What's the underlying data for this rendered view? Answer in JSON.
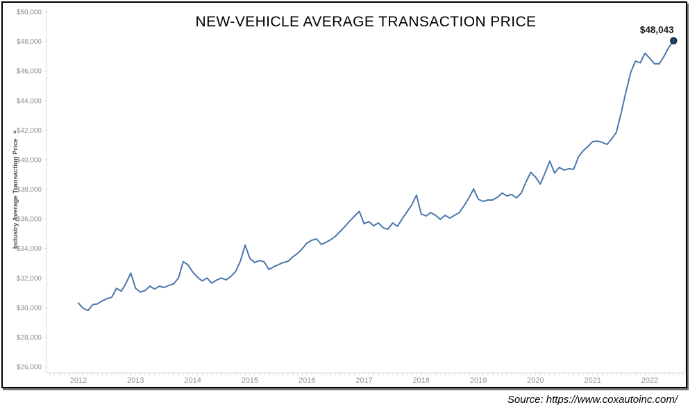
{
  "title": "NEW-VEHICLE AVERAGE TRANSACTION PRICE",
  "source_caption": "Source: https://www.coxautoinc.com/",
  "colors": {
    "line": "#4a77ad",
    "marker_fill": "#23456d",
    "marker_stroke": "#101f33",
    "axis_line": "#d9d9d9",
    "tick_label": "#8e8e8e",
    "y_axis_title": "#4d4d4d",
    "title_text": "#000000",
    "annotation_text": "#1a1a1a"
  },
  "icons": {
    "sort_icon": "✈"
  },
  "y_axis": {
    "title": "Industry Average Transaction Price",
    "tick_labels": [
      "$50,000",
      "$48,000",
      "$46,000",
      "$44,000",
      "$42,000",
      "$40,000",
      "$38,000",
      "$36,000",
      "$34,000",
      "$32,000",
      "$30,000",
      "$28,000",
      "$26,000"
    ]
  },
  "x_axis": {
    "tick_labels": [
      "2012",
      "2013",
      "2014",
      "2015",
      "2016",
      "2017",
      "2018",
      "2019",
      "2020",
      "2021",
      "2022"
    ]
  },
  "chart_data": {
    "type": "line",
    "title": "NEW-VEHICLE AVERAGE TRANSACTION PRICE",
    "ylabel": "Industry Average Transaction Price",
    "xlabel": "",
    "ylim": [
      26000,
      50000
    ],
    "y_tick_step": 2000,
    "grid": false,
    "legend": false,
    "frequency": "monthly",
    "x_start": "2012-01",
    "x_end": "2022-06",
    "xticks": [
      2012,
      2013,
      2014,
      2015,
      2016,
      2017,
      2018,
      2019,
      2020,
      2021,
      2022
    ],
    "end_label": {
      "text": "$48,043",
      "value": 48043
    },
    "series": [
      {
        "name": "Industry Average Transaction Price",
        "values": [
          30300,
          29950,
          29800,
          30200,
          30250,
          30450,
          30600,
          30700,
          31300,
          31100,
          31650,
          32330,
          31300,
          31050,
          31150,
          31450,
          31250,
          31450,
          31350,
          31500,
          31600,
          32000,
          33100,
          32900,
          32400,
          32050,
          31800,
          32000,
          31650,
          31850,
          32000,
          31870,
          32100,
          32430,
          33130,
          34220,
          33330,
          33040,
          33180,
          33090,
          32570,
          32760,
          32900,
          33040,
          33130,
          33420,
          33650,
          33980,
          34360,
          34550,
          34640,
          34270,
          34410,
          34590,
          34830,
          35160,
          35490,
          35860,
          36190,
          36500,
          35670,
          35810,
          35530,
          35720,
          35390,
          35300,
          35720,
          35490,
          36000,
          36470,
          36940,
          37600,
          36330,
          36190,
          36420,
          36240,
          35960,
          36240,
          36050,
          36240,
          36420,
          36890,
          37410,
          38020,
          37320,
          37180,
          37270,
          37270,
          37460,
          37740,
          37550,
          37650,
          37410,
          37740,
          38490,
          39150,
          38820,
          38350,
          39100,
          39900,
          39100,
          39480,
          39290,
          39390,
          39340,
          40180,
          40600,
          40890,
          41220,
          41260,
          41170,
          41030,
          41400,
          41870,
          43190,
          44600,
          45910,
          46670,
          46550,
          47200,
          46850,
          46480,
          46480,
          47000,
          47600,
          48043
        ]
      }
    ]
  }
}
